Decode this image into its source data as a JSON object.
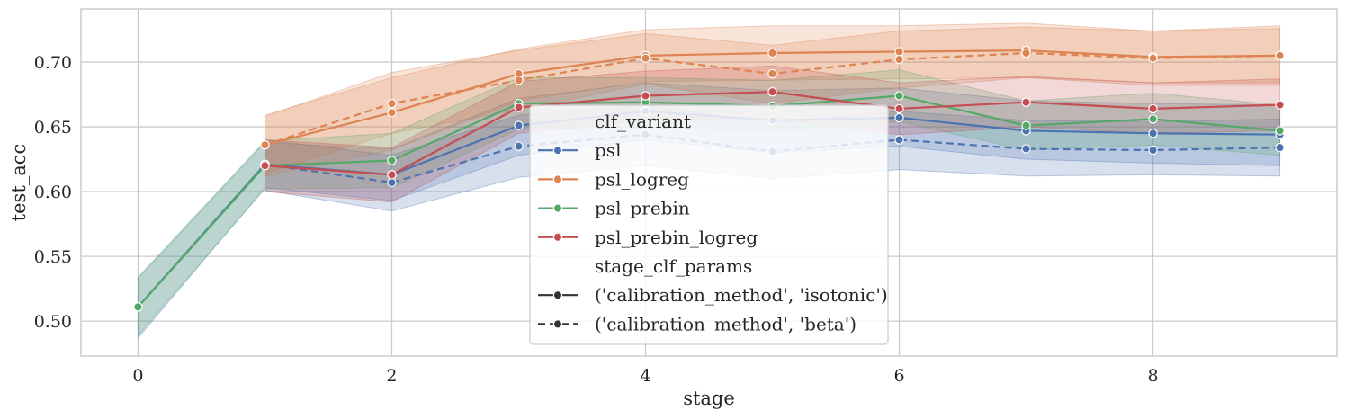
{
  "chart_data": {
    "type": "line",
    "title": "",
    "xlabel": "stage",
    "ylabel": "test_acc",
    "xlim": [
      -0.45,
      9.45
    ],
    "ylim": [
      0.473,
      0.741
    ],
    "x_ticks": [
      0,
      2,
      4,
      6,
      8
    ],
    "x_tick_labels": [
      "0",
      "2",
      "4",
      "6",
      "8"
    ],
    "y_ticks": [
      0.5,
      0.55,
      0.6,
      0.65,
      0.7
    ],
    "y_tick_labels": [
      "0.50",
      "0.55",
      "0.60",
      "0.65",
      "0.70"
    ],
    "grid": true,
    "legend": {
      "placement": "center",
      "hue_title": "clf_variant",
      "style_title": "stage_clf_params",
      "hue_entries": [
        {
          "label": "psl",
          "color": "#4c72b0"
        },
        {
          "label": "psl_logreg",
          "color": "#dd8452"
        },
        {
          "label": "psl_prebin",
          "color": "#55a868"
        },
        {
          "label": "psl_prebin_logreg",
          "color": "#c44e52"
        }
      ],
      "style_entries": [
        {
          "label": "('calibration_method', 'isotonic')",
          "dash": "solid"
        },
        {
          "label": "('calibration_method', 'beta')",
          "dash": "dashed"
        }
      ]
    },
    "series": [
      {
        "variant": "psl",
        "params": "isotonic",
        "color": "#4c72b0",
        "dash": "solid",
        "x": [
          0,
          1,
          2,
          3,
          4,
          5,
          6,
          7,
          8,
          9
        ],
        "y": [
          0.511,
          0.621,
          0.613,
          0.651,
          0.662,
          0.655,
          0.657,
          0.647,
          0.645,
          0.644
        ],
        "lower": [
          0.487,
          0.603,
          0.593,
          0.628,
          0.64,
          0.63,
          0.635,
          0.625,
          0.622,
          0.62
        ],
        "upper": [
          0.533,
          0.638,
          0.633,
          0.672,
          0.684,
          0.678,
          0.68,
          0.67,
          0.668,
          0.667
        ]
      },
      {
        "variant": "psl",
        "params": "beta",
        "color": "#4c72b0",
        "dash": "dashed",
        "x": [
          1,
          2,
          3,
          4,
          5,
          6,
          7,
          8,
          9
        ],
        "y": [
          0.621,
          0.607,
          0.635,
          0.644,
          0.631,
          0.64,
          0.633,
          0.632,
          0.634
        ],
        "lower": [
          0.601,
          0.585,
          0.611,
          0.62,
          0.61,
          0.617,
          0.612,
          0.613,
          0.612
        ],
        "upper": [
          0.64,
          0.628,
          0.659,
          0.667,
          0.653,
          0.662,
          0.655,
          0.654,
          0.656
        ]
      },
      {
        "variant": "psl_logreg",
        "params": "isotonic",
        "color": "#dd8452",
        "dash": "solid",
        "x": [
          1,
          2,
          3,
          4,
          5,
          6,
          7,
          8,
          9
        ],
        "y": [
          0.636,
          0.661,
          0.691,
          0.705,
          0.707,
          0.708,
          0.709,
          0.704,
          0.705
        ],
        "lower": [
          0.612,
          0.632,
          0.67,
          0.685,
          0.686,
          0.687,
          0.688,
          0.684,
          0.684
        ],
        "upper": [
          0.659,
          0.688,
          0.71,
          0.725,
          0.728,
          0.728,
          0.73,
          0.724,
          0.726
        ]
      },
      {
        "variant": "psl_logreg",
        "params": "beta",
        "color": "#dd8452",
        "dash": "dashed",
        "x": [
          1,
          2,
          3,
          4,
          5,
          6,
          7,
          8,
          9
        ],
        "y": [
          0.636,
          0.668,
          0.686,
          0.703,
          0.691,
          0.702,
          0.707,
          0.703,
          0.705
        ],
        "lower": [
          0.614,
          0.645,
          0.663,
          0.683,
          0.668,
          0.68,
          0.688,
          0.682,
          0.682
        ],
        "upper": [
          0.658,
          0.692,
          0.709,
          0.722,
          0.713,
          0.724,
          0.727,
          0.724,
          0.728
        ]
      },
      {
        "variant": "psl_prebin",
        "params": "isotonic",
        "color": "#55a868",
        "dash": "solid",
        "x": [
          0,
          1,
          2,
          3,
          4,
          5,
          6,
          7,
          8,
          9
        ],
        "y": [
          0.511,
          0.62,
          0.624,
          0.668,
          0.669,
          0.666,
          0.674,
          0.651,
          0.656,
          0.647
        ],
        "lower": [
          0.489,
          0.602,
          0.603,
          0.648,
          0.65,
          0.646,
          0.654,
          0.632,
          0.636,
          0.628
        ],
        "upper": [
          0.534,
          0.639,
          0.645,
          0.688,
          0.688,
          0.686,
          0.694,
          0.67,
          0.676,
          0.667
        ]
      },
      {
        "variant": "psl_prebin_logreg",
        "params": "isotonic",
        "color": "#c44e52",
        "dash": "solid",
        "x": [
          1,
          2,
          3,
          4,
          5,
          6,
          7,
          8,
          9
        ],
        "y": [
          0.62,
          0.613,
          0.665,
          0.674,
          0.677,
          0.664,
          0.669,
          0.664,
          0.667
        ],
        "lower": [
          0.6,
          0.592,
          0.645,
          0.655,
          0.657,
          0.644,
          0.65,
          0.645,
          0.647
        ],
        "upper": [
          0.64,
          0.634,
          0.685,
          0.693,
          0.697,
          0.684,
          0.689,
          0.684,
          0.687
        ]
      }
    ]
  }
}
